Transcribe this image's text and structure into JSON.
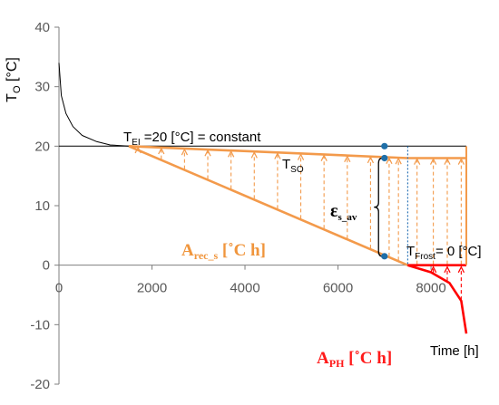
{
  "chart_data": {
    "type": "line",
    "xlim": [
      0,
      8760
    ],
    "ylim": [
      -20,
      40
    ],
    "x_ticks": [
      0,
      2000,
      4000,
      6000,
      8000
    ],
    "y_ticks": [
      -20,
      -10,
      0,
      10,
      20,
      30,
      40
    ],
    "ylabel_main": "T",
    "ylabel_sub": "O",
    "ylabel_unit": " [°C]",
    "xlabel": "Time [h]",
    "grid": false,
    "series": [
      {
        "x": [
          0,
          50,
          150,
          300,
          500,
          800,
          1100,
          1500
        ],
        "y": [
          34,
          28.5,
          25.5,
          23.3,
          21.8,
          20.8,
          20.2,
          20
        ]
      },
      {
        "x": [
          0,
          8760
        ],
        "y": [
          20,
          20
        ]
      },
      {
        "x": [
          1500,
          7500,
          8760
        ],
        "y": [
          20,
          18,
          18
        ]
      },
      {
        "x": [
          1500,
          7500
        ],
        "y": [
          20,
          0
        ]
      },
      {
        "x": [
          7500,
          8760
        ],
        "y": [
          0,
          0
        ]
      },
      {
        "x": [
          7500,
          8000,
          8400,
          8650,
          8760
        ],
        "y": [
          0,
          -1.2,
          -3,
          -6,
          -11.5
        ]
      }
    ],
    "points": [
      {
        "x": 7000,
        "y": 20
      },
      {
        "x": 7000,
        "y": 18
      },
      {
        "x": 7000,
        "y": 1.5
      }
    ],
    "area_rec_arrow_x": [
      1700,
      2200,
      2700,
      3200,
      3700,
      4200,
      4700,
      5200,
      5700,
      6200,
      6700,
      7100,
      7300,
      7700,
      8050,
      8350,
      8650
    ],
    "area_ph_arrow_x": [
      8050,
      8350,
      8650
    ],
    "vline_x": 7500,
    "brace_x": 6950,
    "annotations": {
      "te_main": "T",
      "te_sub": "EI",
      "te_rest": " =20 [°C] = constant",
      "tso_main": "T",
      "tso_sub": "SO",
      "eps_main": "ε",
      "eps_sub": "s_av",
      "arec_main": "A",
      "arec_sub": "rec_s",
      "arec_unit": " [˚C h]",
      "tfrost_main": "T",
      "tfrost_sub": "Frost",
      "tfrost_rest": "= 0 [°C]",
      "aph_main": "A",
      "aph_sub": "PH",
      "aph_unit": " [˚C h]"
    },
    "colors": {
      "orange": "#f39a4b",
      "red": "#ff0000",
      "black": "#000000",
      "blue_point": "#1f6fa8",
      "dotted_vline": "#2e75b6"
    }
  }
}
